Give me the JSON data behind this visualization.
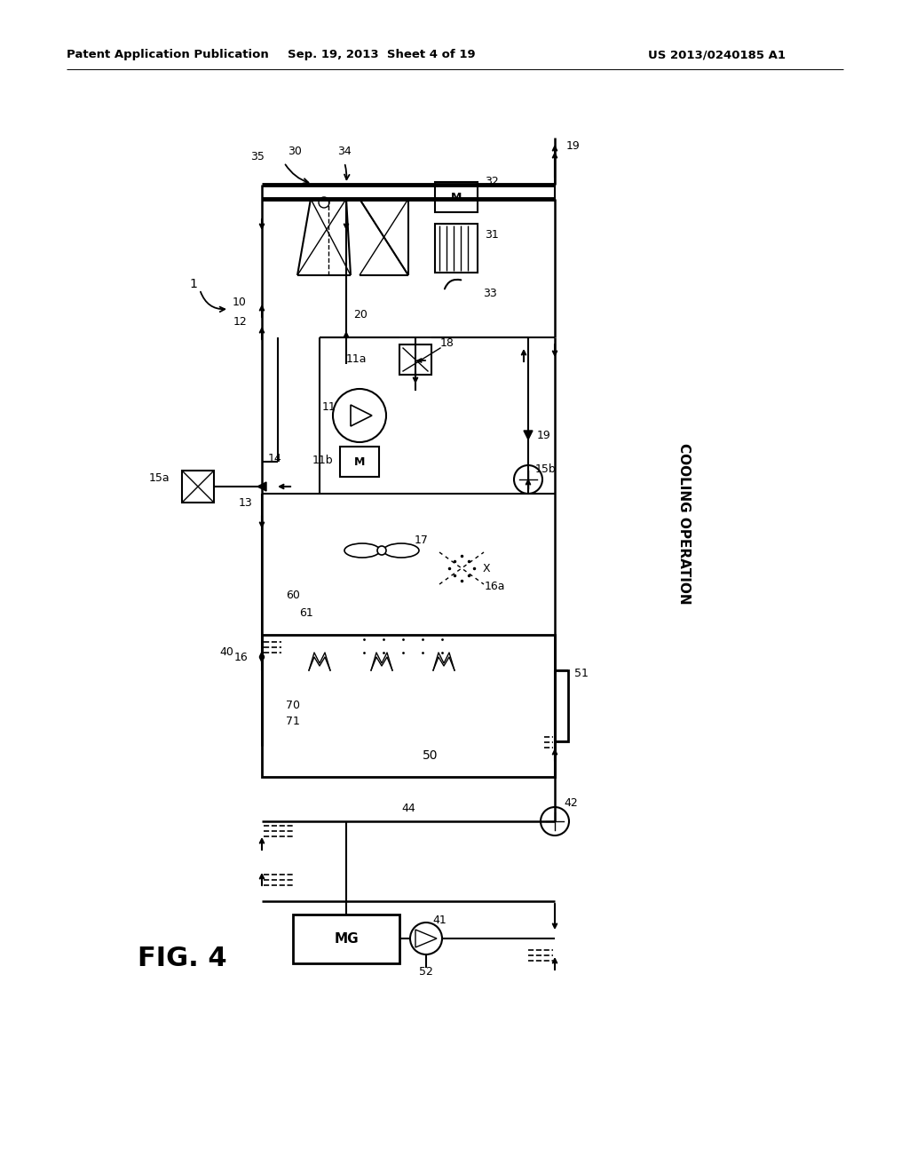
{
  "header_left": "Patent Application Publication",
  "header_center": "Sep. 19, 2013  Sheet 4 of 19",
  "header_right": "US 2013/0240185 A1",
  "fig_label": "FIG. 4",
  "side_label": "COOLING OPERATION",
  "bg_color": "#ffffff"
}
